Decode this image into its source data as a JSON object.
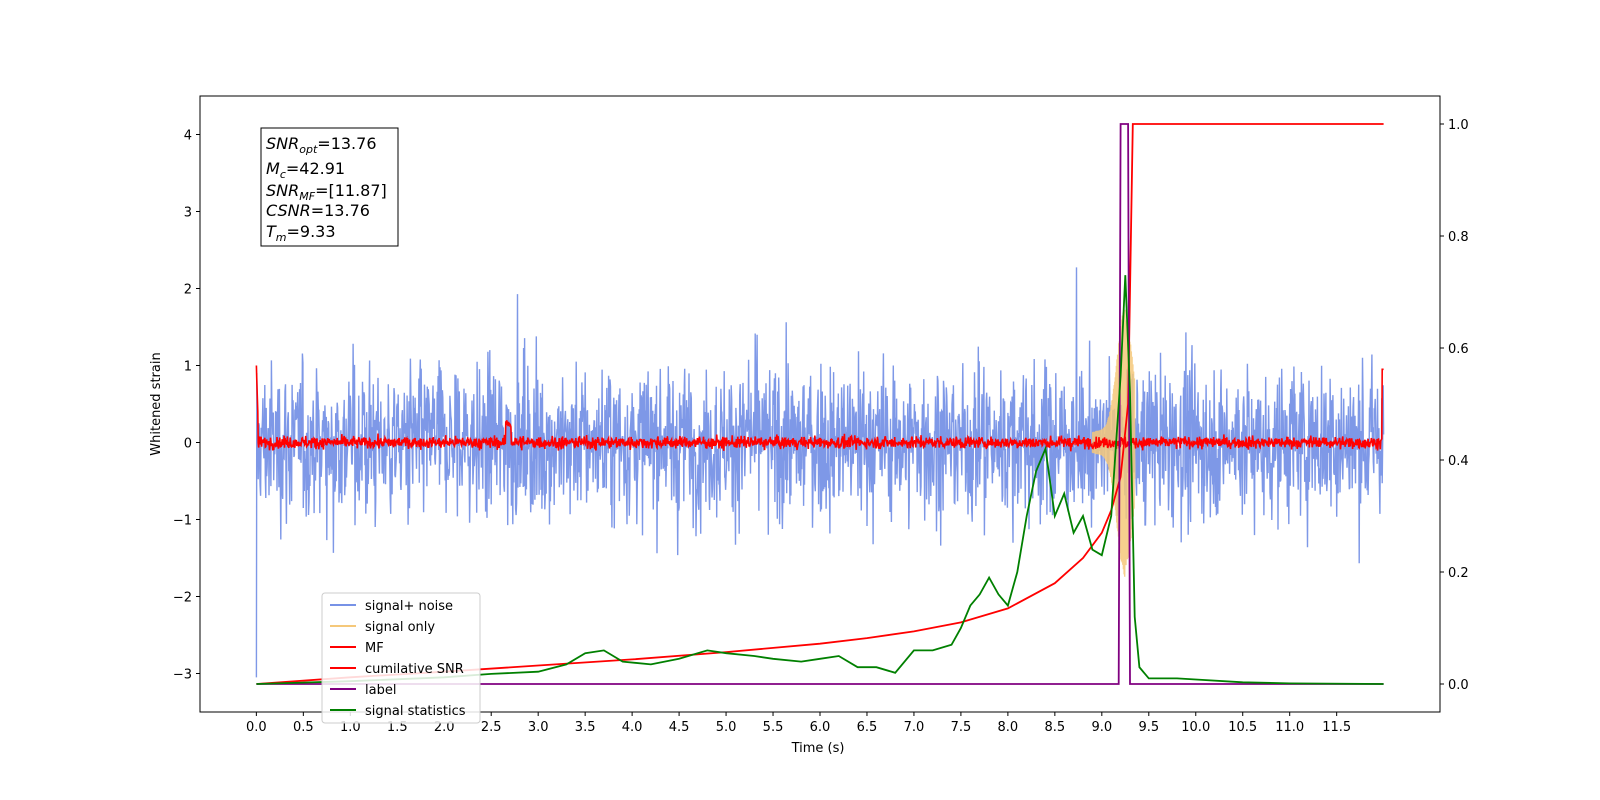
{
  "chart_data": {
    "type": "line",
    "xlabel": "Time (s)",
    "ylabel": "Whitened strain",
    "xlim": [
      -0.6,
      12.6
    ],
    "ylim": [
      -3.5,
      4.5
    ],
    "y2lim": [
      -0.05,
      1.05
    ],
    "x_ticks": [
      "0.0",
      "0.5",
      "1.0",
      "1.5",
      "2.0",
      "2.5",
      "3.0",
      "3.5",
      "4.0",
      "4.5",
      "5.0",
      "5.5",
      "6.0",
      "6.5",
      "7.0",
      "7.5",
      "8.0",
      "8.5",
      "9.0",
      "9.5",
      "10.0",
      "10.5",
      "11.0",
      "11.5"
    ],
    "y_ticks": [
      -3,
      -2,
      -1,
      0,
      1,
      2,
      3,
      4
    ],
    "y_tick_labels": [
      "−3",
      "−2",
      "−1",
      "0",
      "1",
      "2",
      "3",
      "4"
    ],
    "y2_ticks": [
      "0.0",
      "0.2",
      "0.4",
      "0.6",
      "0.8",
      "1.0"
    ],
    "grid": false,
    "legend_position": "lower-left",
    "annotation": {
      "snr_opt": {
        "sym": "SNR",
        "sub": "opt",
        "value": "=13.76"
      },
      "mc": {
        "sym": "M",
        "sub": "c",
        "value": "=42.91"
      },
      "snr_mf": {
        "sym": "SNR",
        "sub": "MF",
        "value": "=[11.87]"
      },
      "csnr": {
        "sym": "CSNR",
        "sub": "",
        "value": "=13.76"
      },
      "tm": {
        "sym": "T",
        "sub": "m",
        "value": "=9.33"
      }
    },
    "series": [
      {
        "name": "signal+ noise",
        "color": "#7792e6",
        "axis": "left",
        "description": "noisy whitened strain around 0, amplitude about ±1.5 with peaks to ±2.4"
      },
      {
        "name": "signal only",
        "color": "#f5c87a",
        "axis": "left",
        "description": "chirp signal peaking near t=9.2 s"
      },
      {
        "name": "MF",
        "color": "#ff0000",
        "axis": "left",
        "description": "matched filter output oscillating near 0"
      },
      {
        "name": "cumilative SNR",
        "color": "#ff0000",
        "axis": "right",
        "x": [
          0.0,
          1.0,
          2.0,
          3.0,
          4.0,
          5.0,
          6.0,
          6.5,
          7.0,
          7.5,
          8.0,
          8.5,
          8.8,
          9.0,
          9.1,
          9.2,
          9.28,
          9.33,
          9.35,
          12.0
        ],
        "values": [
          0.0,
          0.012,
          0.022,
          0.033,
          0.044,
          0.057,
          0.072,
          0.082,
          0.094,
          0.11,
          0.135,
          0.18,
          0.225,
          0.27,
          0.31,
          0.37,
          0.5,
          1.0,
          1.0,
          1.0
        ]
      },
      {
        "name": "label",
        "color": "#800080",
        "axis": "right",
        "x": [
          0.0,
          9.18,
          9.2,
          9.28,
          9.3,
          9.37,
          12.0
        ],
        "values": [
          0.0,
          0.0,
          1.0,
          1.0,
          0.0,
          0.0,
          0.0
        ]
      },
      {
        "name": "signal statistics",
        "color": "#008000",
        "axis": "right",
        "x": [
          0.0,
          1.0,
          2.0,
          2.5,
          3.0,
          3.3,
          3.5,
          3.7,
          3.9,
          4.2,
          4.5,
          4.8,
          5.0,
          5.3,
          5.5,
          5.8,
          6.0,
          6.2,
          6.4,
          6.6,
          6.8,
          7.0,
          7.2,
          7.4,
          7.5,
          7.6,
          7.7,
          7.8,
          7.9,
          8.0,
          8.1,
          8.2,
          8.3,
          8.4,
          8.5,
          8.6,
          8.7,
          8.8,
          8.9,
          9.0,
          9.1,
          9.2,
          9.25,
          9.3,
          9.35,
          9.4,
          9.5,
          9.8,
          10.0,
          10.5,
          11.0,
          12.0
        ],
        "values": [
          0.0,
          0.005,
          0.012,
          0.018,
          0.022,
          0.035,
          0.055,
          0.06,
          0.04,
          0.035,
          0.045,
          0.06,
          0.055,
          0.05,
          0.045,
          0.04,
          0.045,
          0.05,
          0.03,
          0.03,
          0.02,
          0.06,
          0.06,
          0.07,
          0.1,
          0.14,
          0.16,
          0.19,
          0.16,
          0.14,
          0.2,
          0.3,
          0.38,
          0.42,
          0.3,
          0.34,
          0.27,
          0.3,
          0.24,
          0.23,
          0.3,
          0.55,
          0.73,
          0.52,
          0.12,
          0.03,
          0.01,
          0.01,
          0.008,
          0.003,
          0.001,
          0.0
        ]
      }
    ]
  }
}
